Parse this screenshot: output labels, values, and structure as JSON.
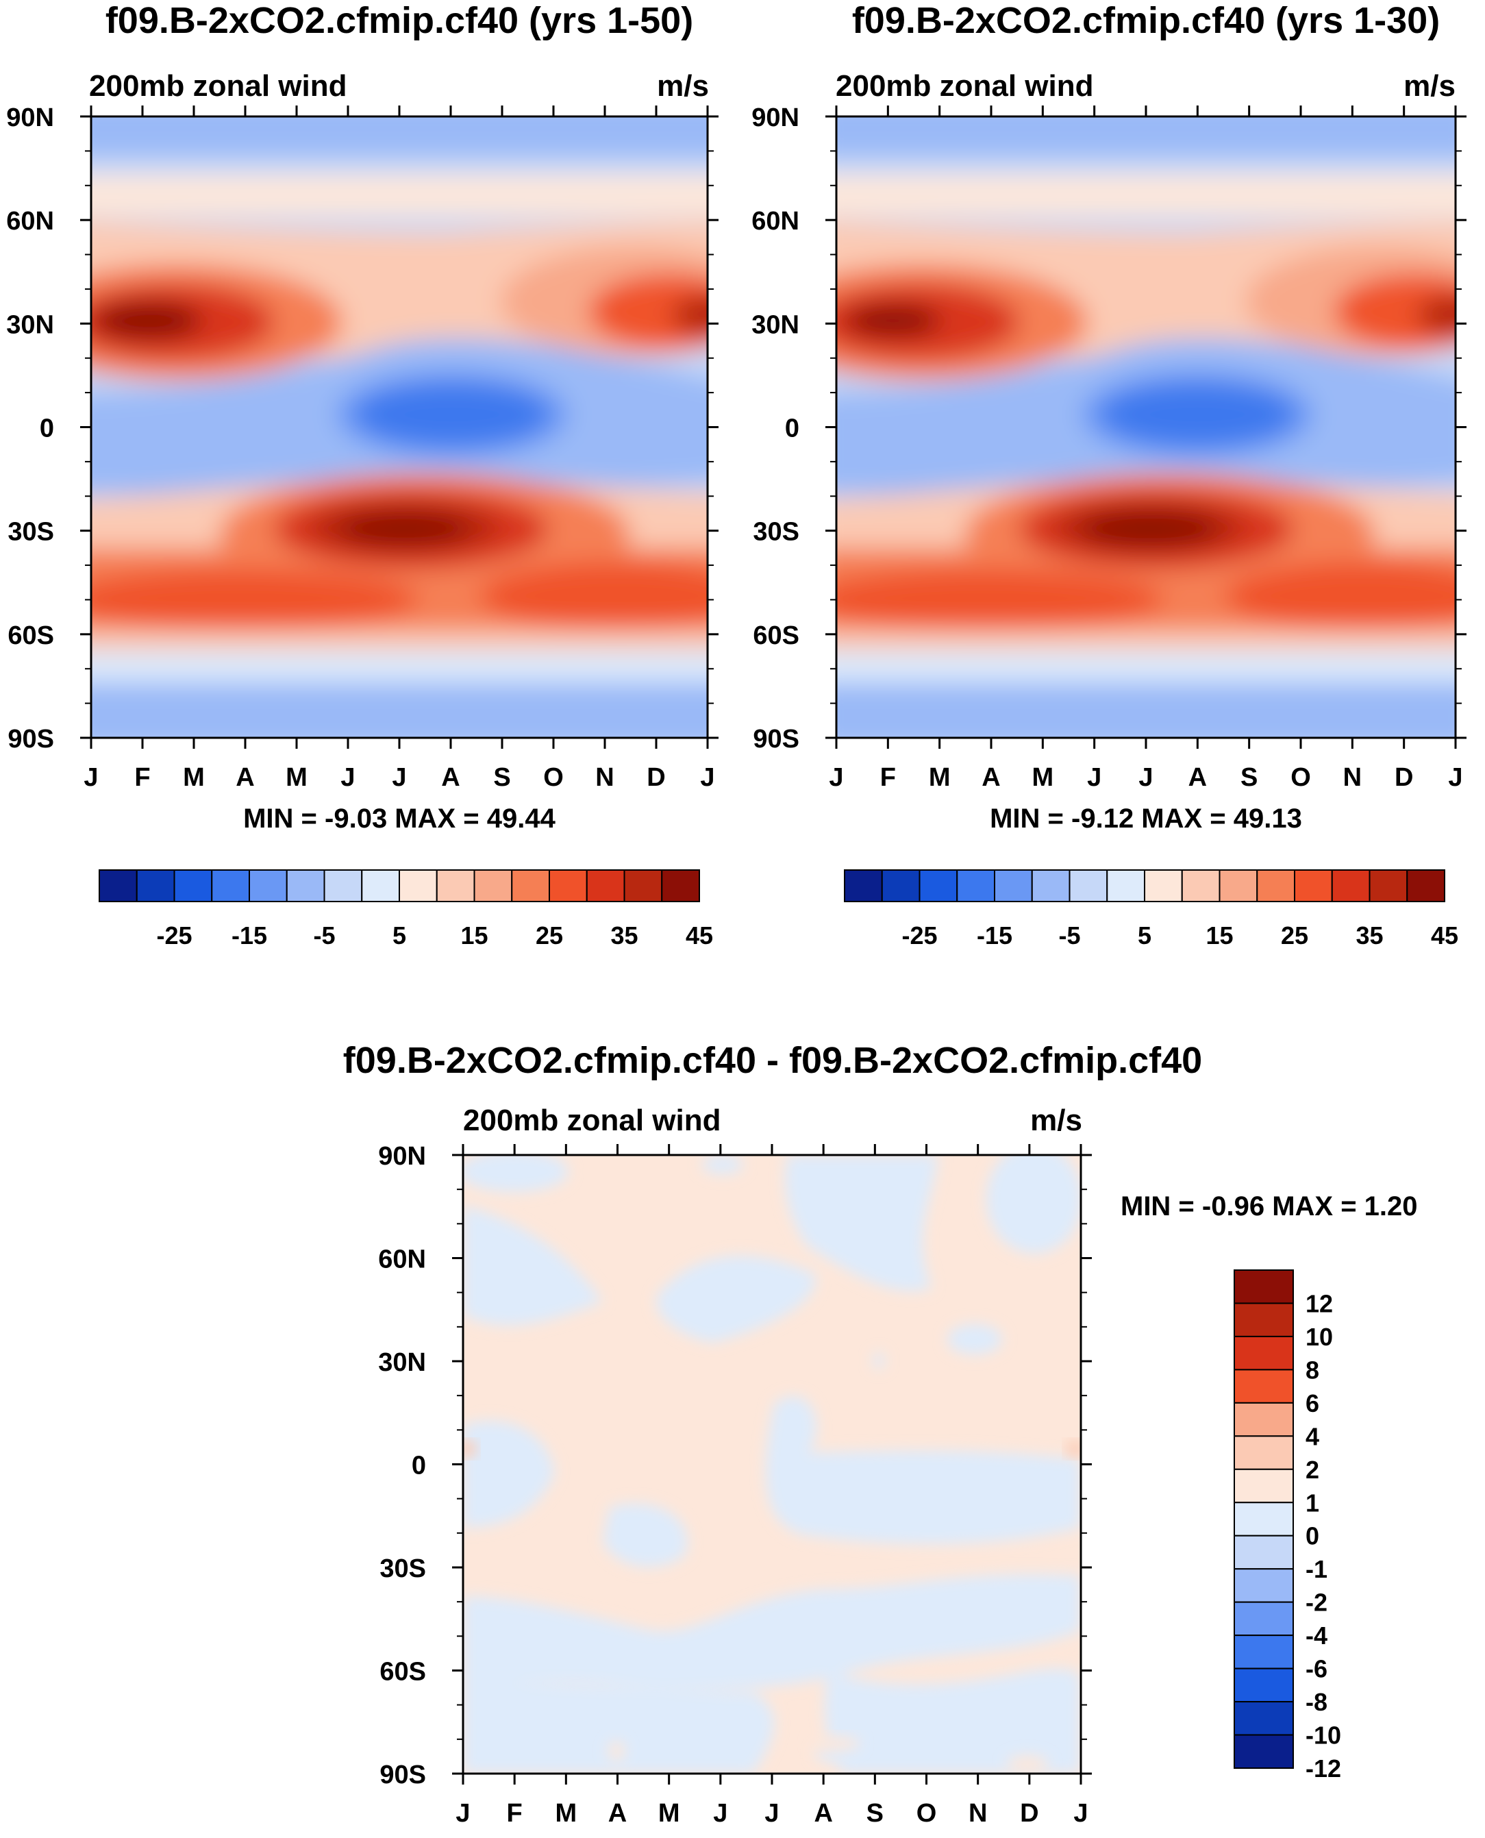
{
  "panels": [
    {
      "title": "f09.B-2xCO2.cfmip.cf40 (yrs 1-50)",
      "left_label": "200mb zonal wind",
      "right_label": "m/s",
      "stats": "MIN =  -9.03 MAX =  49.44"
    },
    {
      "title": "f09.B-2xCO2.cfmip.cf40 (yrs 1-30)",
      "left_label": "200mb zonal wind",
      "right_label": "m/s",
      "stats": "MIN =  -9.12 MAX =  49.13"
    },
    {
      "title": "f09.B-2xCO2.cfmip.cf40 - f09.B-2xCO2.cfmip.cf40",
      "left_label": "200mb zonal wind",
      "right_label": "m/s",
      "stats": "MIN =  -0.96 MAX =   1.20"
    }
  ],
  "chart_data": [
    {
      "type": "heatmap",
      "title": "f09.B-2xCO2.cfmip.cf40 (yrs 1-50)",
      "subtitle": "200mb zonal wind",
      "units": "m/s",
      "x_ticks": [
        "J",
        "F",
        "M",
        "A",
        "M",
        "J",
        "J",
        "A",
        "S",
        "O",
        "N",
        "D",
        "J"
      ],
      "y_ticks": [
        "90N",
        "60N",
        "30N",
        "0",
        "30S",
        "60S",
        "90S"
      ],
      "min": -9.03,
      "max": 49.44,
      "levels": [
        -30,
        -25,
        -20,
        -15,
        -10,
        -5,
        0,
        5,
        10,
        15,
        20,
        25,
        30,
        35,
        40,
        45
      ],
      "colorbar_labels": [
        "-25",
        "-15",
        "-5",
        "5",
        "15",
        "25",
        "35",
        "45"
      ],
      "features": [
        {
          "label": "NH jet core (Jan-Mar, ~30N)",
          "value": 45
        },
        {
          "label": "NH jet core (Nov-Jan, ~30N)",
          "value": 40
        },
        {
          "label": "SH jet core (Jun-Aug, ~30S)",
          "value": 45
        },
        {
          "label": "Equatorial easterlies (Jun-Sep)",
          "value": -9
        }
      ]
    },
    {
      "type": "heatmap",
      "title": "f09.B-2xCO2.cfmip.cf40 (yrs 1-30)",
      "subtitle": "200mb zonal wind",
      "units": "m/s",
      "x_ticks": [
        "J",
        "F",
        "M",
        "A",
        "M",
        "J",
        "J",
        "A",
        "S",
        "O",
        "N",
        "D",
        "J"
      ],
      "y_ticks": [
        "90N",
        "60N",
        "30N",
        "0",
        "30S",
        "60S",
        "90S"
      ],
      "min": -9.12,
      "max": 49.13,
      "levels": [
        -30,
        -25,
        -20,
        -15,
        -10,
        -5,
        0,
        5,
        10,
        15,
        20,
        25,
        30,
        35,
        40,
        45
      ],
      "colorbar_labels": [
        "-25",
        "-15",
        "-5",
        "5",
        "15",
        "25",
        "35",
        "45"
      ]
    },
    {
      "type": "heatmap",
      "title": "f09.B-2xCO2.cfmip.cf40 - f09.B-2xCO2.cfmip.cf40",
      "subtitle": "200mb zonal wind",
      "units": "m/s",
      "x_ticks": [
        "J",
        "F",
        "M",
        "A",
        "M",
        "J",
        "J",
        "A",
        "S",
        "O",
        "N",
        "D",
        "J"
      ],
      "y_ticks": [
        "90N",
        "60N",
        "30N",
        "0",
        "30S",
        "60S",
        "90S"
      ],
      "min": -0.96,
      "max": 1.2,
      "colorbar_labels": [
        "12",
        "10",
        "8",
        "6",
        "4",
        "2",
        "1",
        "0",
        "-1",
        "-2",
        "-4",
        "-6",
        "-8",
        "-10",
        "-12"
      ]
    }
  ],
  "palettes": {
    "main": [
      "#0a1f8c",
      "#0c3cb8",
      "#1a5ae0",
      "#3c78ee",
      "#6a98f4",
      "#9ab9f7",
      "#c6d8f8",
      "#deebfb",
      "#fde7da",
      "#fbcab4",
      "#f8a98a",
      "#f57f54",
      "#f0522a",
      "#d9341a",
      "#b82810",
      "#8c0f06"
    ],
    "diff": [
      "#8c0f06",
      "#b82810",
      "#d9341a",
      "#f0522a",
      "#f8a98a",
      "#fbcab4",
      "#fde7da",
      "#deebfb",
      "#c6d8f8",
      "#9ab9f7",
      "#6a98f4",
      "#3c78ee",
      "#1a5ae0",
      "#0c3cb8",
      "#0a1f8c"
    ]
  }
}
